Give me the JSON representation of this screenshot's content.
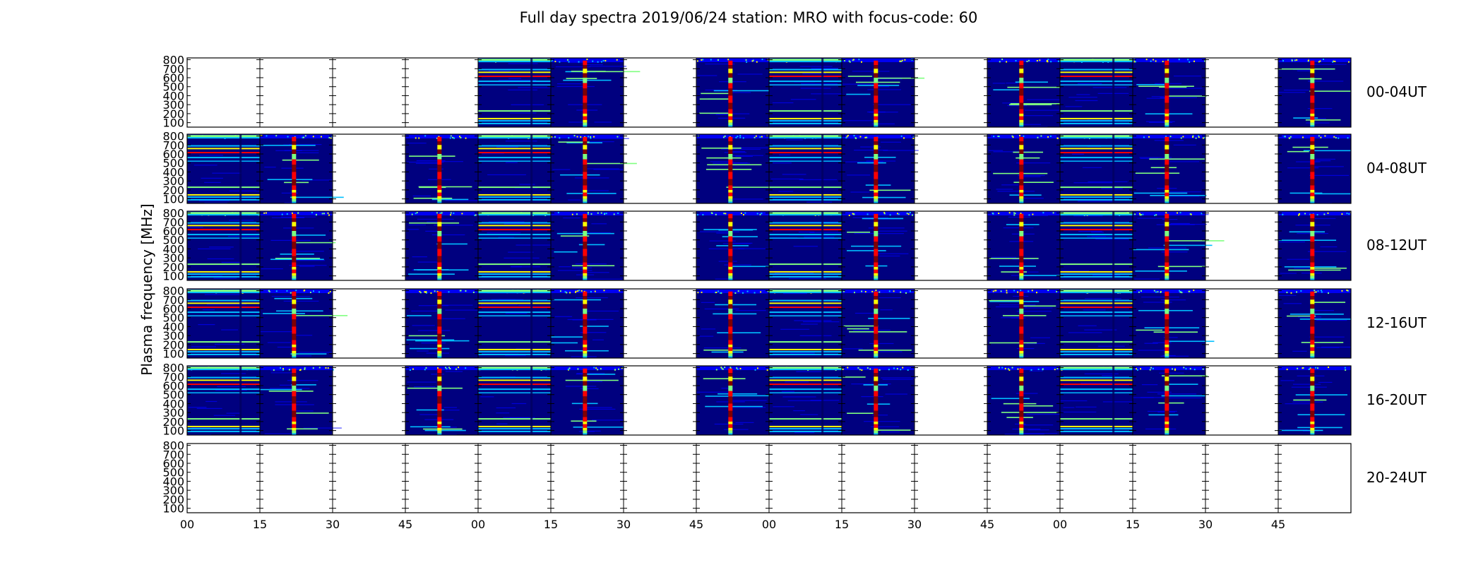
{
  "chart_data": {
    "type": "heatmap",
    "title": "Full day spectra 2019/06/24 station: MRO with focus-code: 60",
    "ylabel": "Plasma frequency [MHz]",
    "xlabel": "",
    "ylim": [
      50,
      820
    ],
    "y_ticks": [
      "100",
      "200",
      "300",
      "400",
      "500",
      "600",
      "700",
      "800"
    ],
    "x_ticks": [
      "00",
      "15",
      "30",
      "45",
      "00",
      "15",
      "30",
      "45",
      "00",
      "15",
      "30",
      "45",
      "00",
      "15",
      "30",
      "45"
    ],
    "hours_per_row": 4,
    "segments_per_row": 16,
    "segment_minutes": 15,
    "rows": [
      {
        "label": "00-04UT",
        "segments": [
          0,
          0,
          0,
          0,
          1,
          2,
          0,
          2,
          1,
          2,
          0,
          2,
          1,
          2,
          0,
          2
        ]
      },
      {
        "label": "04-08UT",
        "segments": [
          1,
          2,
          0,
          2,
          1,
          2,
          0,
          2,
          1,
          2,
          0,
          2,
          1,
          2,
          0,
          2
        ]
      },
      {
        "label": "08-12UT",
        "segments": [
          1,
          2,
          0,
          2,
          1,
          2,
          0,
          2,
          1,
          2,
          0,
          2,
          1,
          2,
          0,
          2
        ]
      },
      {
        "label": "12-16UT",
        "segments": [
          1,
          2,
          0,
          2,
          1,
          2,
          0,
          2,
          1,
          2,
          0,
          2,
          1,
          2,
          0,
          2
        ]
      },
      {
        "label": "16-20UT",
        "segments": [
          1,
          2,
          0,
          2,
          1,
          2,
          0,
          2,
          1,
          2,
          0,
          2,
          1,
          2,
          0,
          2
        ]
      },
      {
        "label": "20-24UT",
        "segments": [
          0,
          0,
          0,
          0,
          0,
          0,
          0,
          0,
          0,
          0,
          0,
          0,
          0,
          0,
          0,
          0
        ]
      }
    ],
    "segment_legend_note": "0 = no data, 1 = spectrum with horizontal lines, 2 = spectrum with vertical burst",
    "colormap": [
      "#00007f",
      "#0000ff",
      "#00bfff",
      "#7fff7f",
      "#ffff00",
      "#ff7f00",
      "#ff0000",
      "#7f0000"
    ],
    "grid": false
  }
}
